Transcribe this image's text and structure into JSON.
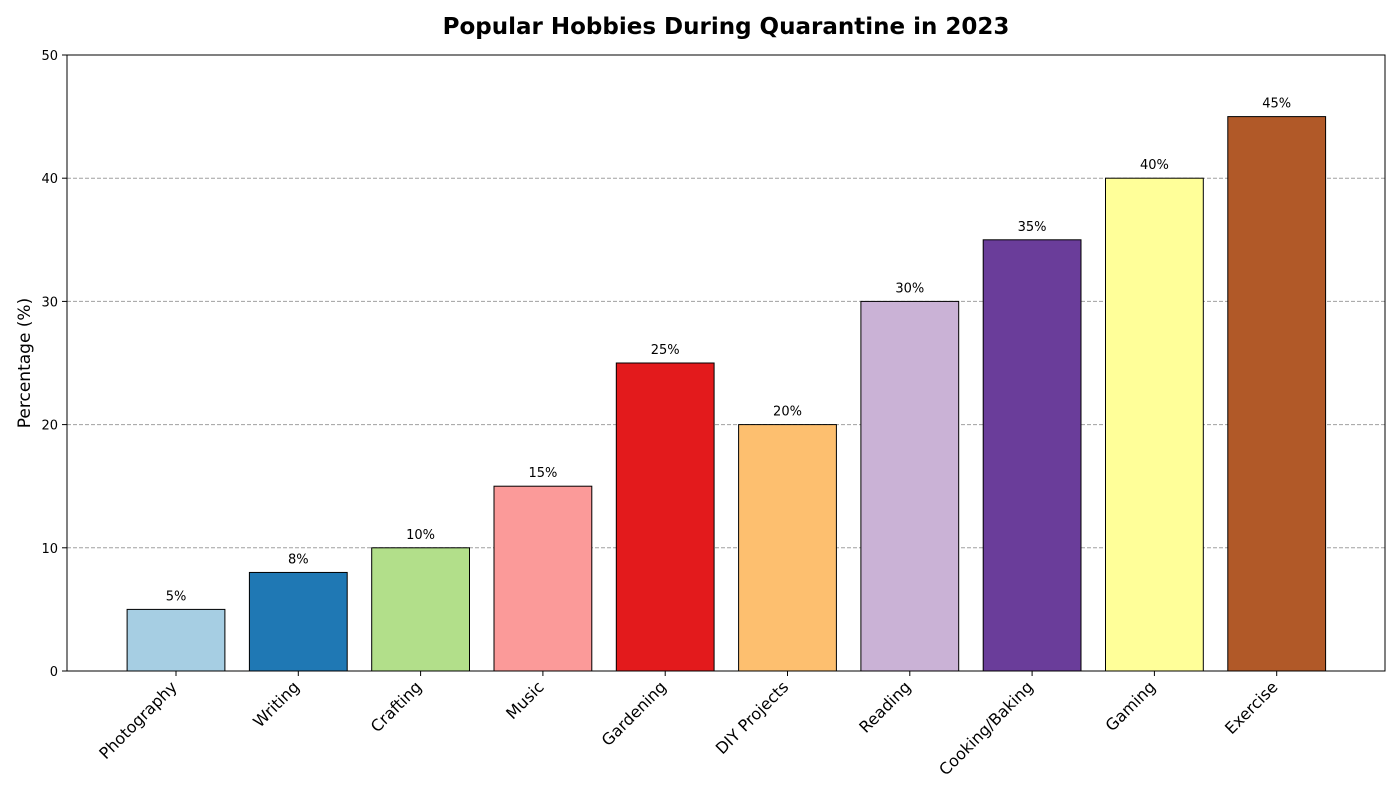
{
  "chart_data": {
    "type": "bar",
    "title": "Popular Hobbies During Quarantine in 2023",
    "xlabel": "",
    "ylabel": "Percentage (%)",
    "ylim": [
      0,
      50
    ],
    "yticks": [
      0,
      10,
      20,
      30,
      40,
      50
    ],
    "grid": "y-dashed",
    "categories": [
      "Photography",
      "Writing",
      "Crafting",
      "Music",
      "Gardening",
      "DIY Projects",
      "Reading",
      "Cooking/Baking",
      "Gaming",
      "Exercise"
    ],
    "values": [
      5,
      8,
      10,
      15,
      25,
      20,
      30,
      35,
      40,
      45
    ],
    "value_labels": [
      "5%",
      "8%",
      "10%",
      "15%",
      "25%",
      "20%",
      "30%",
      "35%",
      "40%",
      "45%"
    ],
    "colors": [
      "#a6cee3",
      "#1f78b4",
      "#b2df8a",
      "#fb9a99",
      "#e31a1c",
      "#fdbf6f",
      "#cab2d6",
      "#6a3d9a",
      "#ffff99",
      "#b15928"
    ]
  }
}
